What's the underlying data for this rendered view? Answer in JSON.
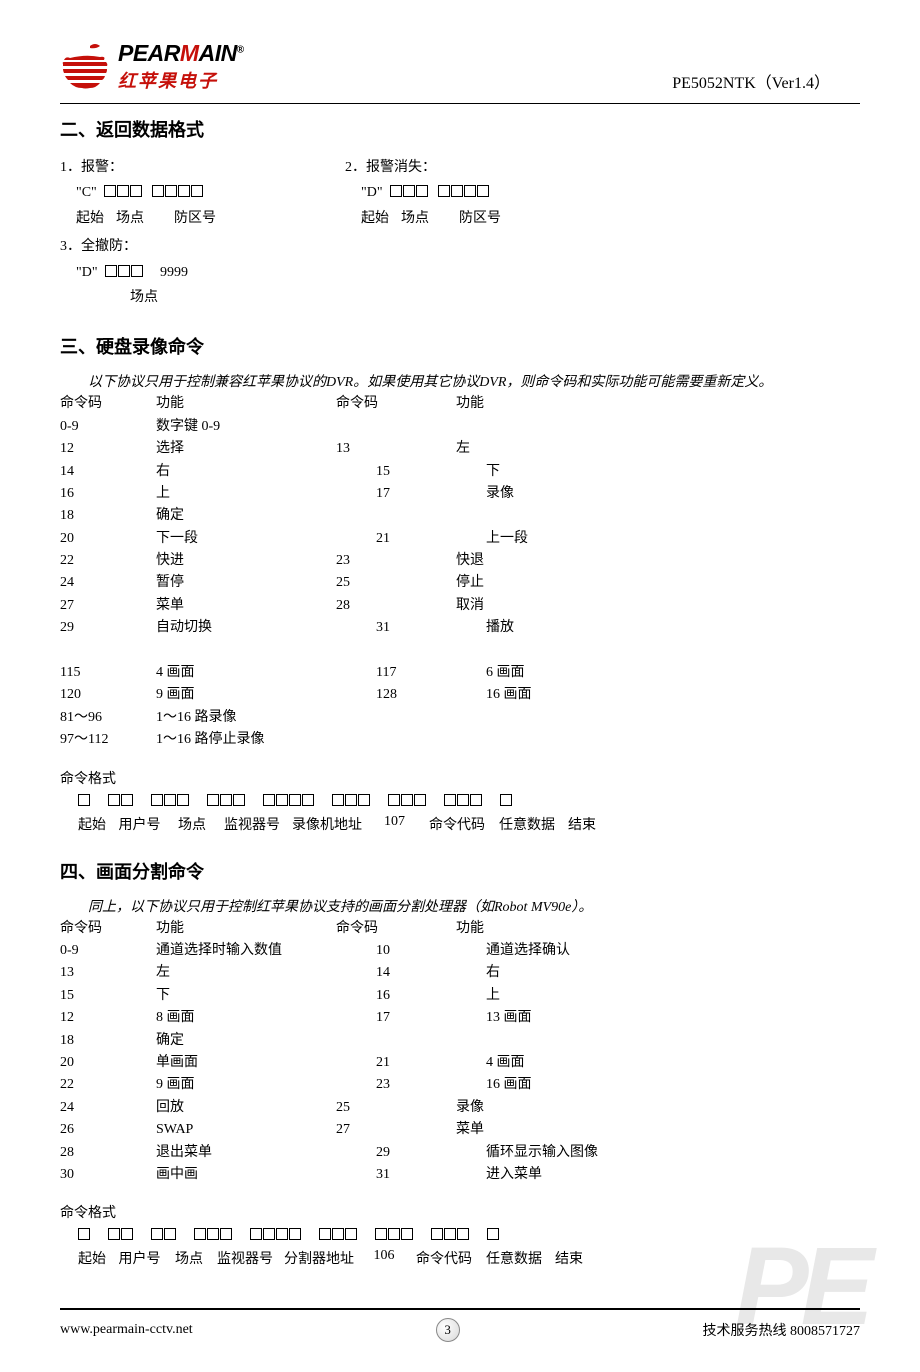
{
  "colors": {
    "accent": "#c5100a",
    "text": "#000000",
    "bg": "#ffffff",
    "watermark": "#e8e8e8"
  },
  "header": {
    "brand_lat_prefix": "PEAR",
    "brand_lat_red": "M",
    "brand_lat_suffix": "AIN",
    "brand_reg": "®",
    "brand_cn": "红苹果电子",
    "model": "PE5052NTK（Ver1.4）"
  },
  "watermark": "PE",
  "section2": {
    "title": "二、返回数据格式",
    "items": [
      {
        "num": "1．报警：",
        "code": "\"C\"",
        "boxes": [
          3,
          4
        ],
        "labels": [
          "起始",
          "场点",
          "防区号"
        ]
      },
      {
        "num": "2．报警消失：",
        "code": "\"D\"",
        "boxes": [
          3,
          4
        ],
        "labels": [
          "起始",
          "场点",
          "防区号"
        ]
      },
      {
        "num": "3．全撤防：",
        "code": "\"D\"",
        "boxes": [
          3
        ],
        "tail": "9999",
        "labels": [
          "场点"
        ]
      }
    ]
  },
  "section3": {
    "title": "三、硬盘录像命令",
    "note": "以下协议只用于控制兼容红苹果协议的DVR。如果使用其它协议DVR，则命令码和实际功能可能需要重新定义。",
    "headers": [
      "命令码",
      "功能",
      "命令码",
      "功能"
    ],
    "rows": [
      [
        "0-9",
        "数字键 0-9",
        "",
        ""
      ],
      [
        "12",
        "选择",
        "13",
        "左"
      ],
      [
        "14",
        "右",
        "15",
        "下"
      ],
      [
        "16",
        "上",
        "17",
        "录像"
      ],
      [
        "18",
        "确定",
        "",
        ""
      ],
      [
        "20",
        "下一段",
        "21",
        "上一段"
      ],
      [
        "22",
        "快进",
        "23",
        "快退"
      ],
      [
        "24",
        "暂停",
        "25",
        "停止"
      ],
      [
        "27",
        "菜单",
        "28",
        "取消"
      ],
      [
        "29",
        "自动切换",
        "31",
        "播放"
      ],
      [
        "",
        "",
        "",
        ""
      ],
      [
        "115",
        "4 画面",
        "117",
        "6 画面"
      ],
      [
        "120",
        "9 画面",
        "128",
        "16 画面"
      ],
      [
        "81～96",
        "1～16 路录像",
        "",
        ""
      ],
      [
        "97～112",
        "1～16 路停止录像",
        "",
        ""
      ]
    ],
    "indent_pattern": [
      "",
      "n",
      "i1",
      "i1",
      "n",
      "i1",
      "n",
      "n",
      "n",
      "i1",
      "",
      "i1",
      "i1",
      "",
      ""
    ],
    "format": {
      "title": "命令格式",
      "boxes": [
        1,
        2,
        3,
        3,
        4,
        3,
        3,
        3,
        1
      ],
      "labels": [
        "起始",
        "用户号",
        "场点",
        "监视器号",
        "录像机地址",
        "107",
        "命令代码",
        "任意数据",
        "结束"
      ],
      "label_widths": [
        40,
        55,
        50,
        70,
        80,
        55,
        70,
        70,
        40
      ]
    }
  },
  "section4": {
    "title": "四、画面分割命令",
    "note": "同上，以下协议只用于控制红苹果协议支持的画面分割处理器（如Robot MV90e）。",
    "headers": [
      "命令码",
      "功能",
      "命令码",
      "功能"
    ],
    "rows": [
      [
        "0-9",
        "通道选择时输入数值",
        "10",
        "通道选择确认"
      ],
      [
        "13",
        "左",
        "14",
        "右"
      ],
      [
        "15",
        "下",
        "16",
        "上"
      ],
      [
        "12",
        "8 画面",
        "17",
        "13 画面"
      ],
      [
        "18",
        "确定",
        "",
        ""
      ],
      [
        "20",
        "单画面",
        "21",
        "4 画面"
      ],
      [
        "22",
        "9 画面",
        "23",
        "16 画面"
      ],
      [
        "24",
        "回放",
        "25",
        "录像"
      ],
      [
        "26",
        "SWAP",
        "27",
        "菜单"
      ],
      [
        "28",
        "退出菜单",
        "29",
        "循环显示输入图像"
      ],
      [
        "30",
        "画中画",
        "31",
        "进入菜单"
      ]
    ],
    "indent_pattern": [
      "i1",
      "i1",
      "i1",
      "i1",
      "",
      "i1",
      "i1",
      "n",
      "n",
      "i1",
      "i1"
    ],
    "format": {
      "title": "命令格式",
      "boxes": [
        1,
        2,
        2,
        3,
        4,
        3,
        3,
        3,
        1
      ],
      "labels": [
        "起始",
        "用户号",
        "场点",
        "监视器号",
        "分割器地址",
        "106",
        "命令代码",
        "任意数据",
        "结束"
      ],
      "label_widths": [
        40,
        55,
        44,
        68,
        80,
        50,
        70,
        70,
        40
      ]
    }
  },
  "footer": {
    "url": "www.pearmain-cctv.net",
    "page": "3",
    "hotline_label": "技术服务热线",
    "hotline_num": "8008571727"
  }
}
